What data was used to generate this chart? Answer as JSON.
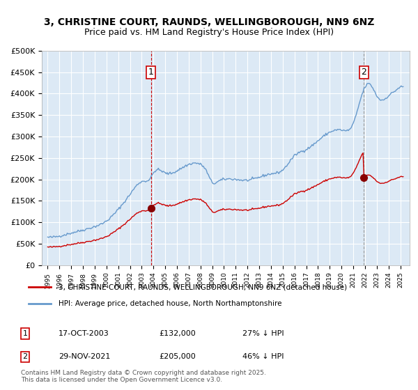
{
  "title_line1": "3, CHRISTINE COURT, RAUNDS, WELLINGBOROUGH, NN9 6NZ",
  "title_line2": "Price paid vs. HM Land Registry's House Price Index (HPI)",
  "ylabel": "",
  "xlabel": "",
  "background_color": "#dce9f5",
  "plot_bg_color": "#dce9f5",
  "outer_bg_color": "#ffffff",
  "red_line_color": "#cc0000",
  "blue_line_color": "#6699cc",
  "marker_color": "#880000",
  "vline1_color": "#cc0000",
  "vline2_color": "#999999",
  "ylim": [
    0,
    500000
  ],
  "yticks": [
    0,
    50000,
    100000,
    150000,
    200000,
    250000,
    300000,
    350000,
    400000,
    450000,
    500000
  ],
  "ytick_labels": [
    "£0",
    "£50K",
    "£100K",
    "£150K",
    "£200K",
    "£250K",
    "£300K",
    "£350K",
    "£400K",
    "£450K",
    "£500K"
  ],
  "purchase1_date": 2003.79,
  "purchase1_price": 132000,
  "purchase2_date": 2021.91,
  "purchase2_price": 205000,
  "legend_line1": "3, CHRISTINE COURT, RAUNDS, WELLINGBOROUGH, NN9 6NZ (detached house)",
  "legend_line2": "HPI: Average price, detached house, North Northamptonshire",
  "annotation1": "17-OCT-2003",
  "annotation1_price": "£132,000",
  "annotation1_hpi": "27% ↓ HPI",
  "annotation2": "29-NOV-2021",
  "annotation2_price": "£205,000",
  "annotation2_hpi": "46% ↓ HPI",
  "copyright": "Contains HM Land Registry data © Crown copyright and database right 2025.\nThis data is licensed under the Open Government Licence v3.0."
}
